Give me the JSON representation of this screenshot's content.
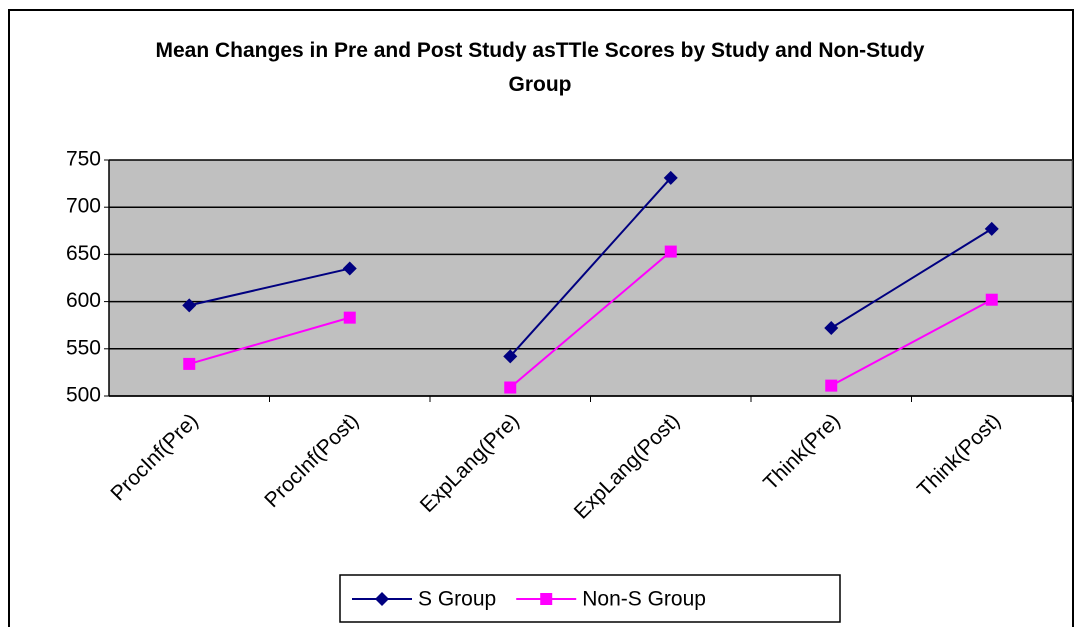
{
  "chart_data": {
    "type": "line",
    "title": "Mean Changes in Pre and Post Study asTTle Scores by Study and Non-Study Group",
    "categories": [
      "ProcInf(Pre)",
      "ProcInf(Post)",
      "ExpLang(Pre)",
      "ExpLang(Post)",
      "Think(Pre)",
      "Think(Post)"
    ],
    "series": [
      {
        "name": "S Group",
        "color": "#000080",
        "marker": "diamond",
        "values": [
          596,
          635,
          542,
          731,
          572,
          677
        ]
      },
      {
        "name": "Non-S Group",
        "color": "#ff00ff",
        "marker": "square",
        "values": [
          534,
          583,
          509,
          653,
          511,
          602
        ]
      }
    ],
    "connect": "pairs",
    "ylim": [
      500,
      750
    ],
    "yticks": [
      500,
      550,
      600,
      650,
      700,
      750
    ],
    "grid": true,
    "legend": "bottom"
  }
}
